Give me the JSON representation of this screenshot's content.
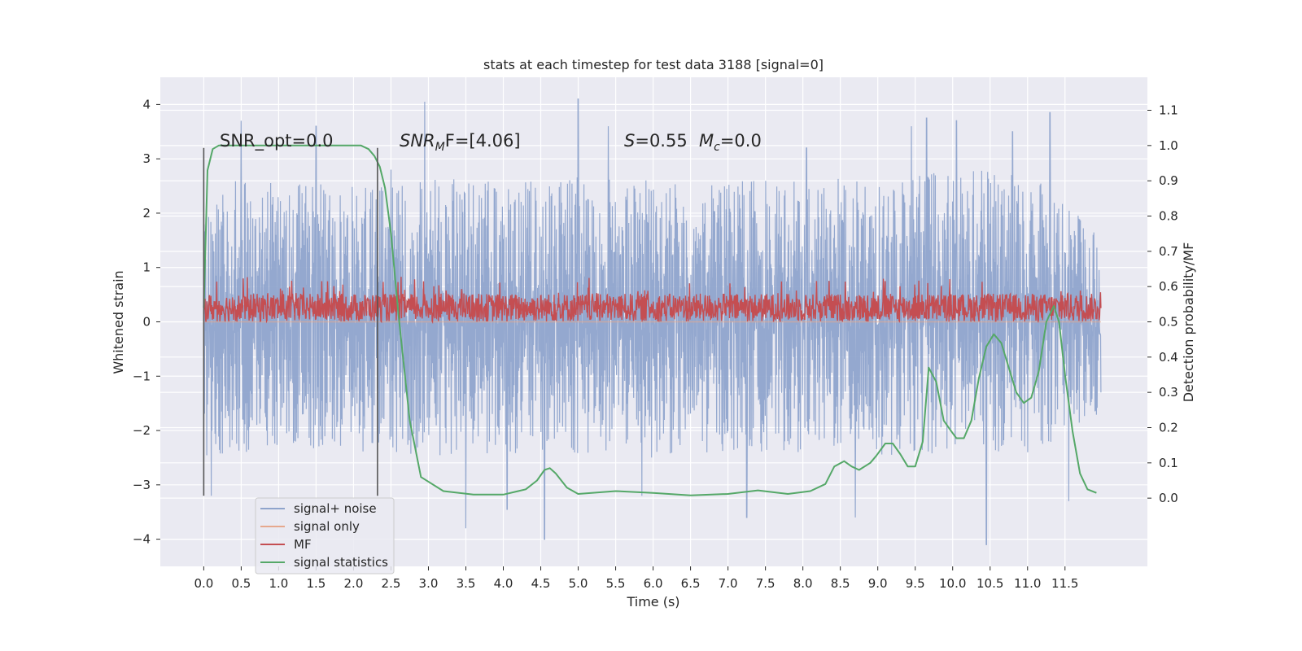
{
  "chart_data": {
    "type": "line",
    "title": "stats at each timestep for test data 3188 [signal=0]",
    "xlabel": "Time (s)",
    "ylabel": "Whitened strain",
    "y2label": "Detection probability/MF",
    "xlim": [
      -0.58,
      12.6
    ],
    "ylim": [
      -4.5,
      4.5
    ],
    "y2lim": [
      -0.1935,
      1.1935
    ],
    "x_ticks": [
      0.0,
      0.5,
      1.0,
      1.5,
      2.0,
      2.5,
      3.0,
      3.5,
      4.0,
      4.5,
      5.0,
      5.5,
      6.0,
      6.5,
      7.0,
      7.5,
      8.0,
      8.5,
      9.0,
      9.5,
      10.0,
      10.5,
      11.0,
      11.5
    ],
    "x_tick_labels": [
      "0.0",
      "0.5",
      "1.0",
      "1.5",
      "2.0",
      "2.5",
      "3.0",
      "3.5",
      "4.0",
      "4.5",
      "5.0",
      "5.5",
      "6.0",
      "6.5",
      "7.0",
      "7.5",
      "8.0",
      "8.5",
      "9.0",
      "9.5",
      "10.0",
      "10.5",
      "11.0",
      "11.5"
    ],
    "y_ticks": [
      -4,
      -3,
      -2,
      -1,
      0,
      1,
      2,
      3,
      4
    ],
    "y_tick_labels": [
      "−4",
      "−3",
      "−2",
      "−1",
      "0",
      "1",
      "2",
      "3",
      "4"
    ],
    "y2_ticks": [
      0.0,
      0.1,
      0.2,
      0.3,
      0.4,
      0.5,
      0.6,
      0.7,
      0.8,
      0.9,
      1.0,
      1.1
    ],
    "y2_tick_labels": [
      "0.0",
      "0.1",
      "0.2",
      "0.3",
      "0.4",
      "0.5",
      "0.6",
      "0.7",
      "0.8",
      "0.9",
      "1.0",
      "1.1"
    ],
    "grid": true,
    "legend_position": "lower-left",
    "annotations": {
      "snr_opt": "SNR_opt=0.0",
      "snr_mf_prefix": "SNR",
      "snr_mf_sub": "M",
      "snr_mf_rest": "F=[4.06]",
      "s_symbol": "S",
      "s_value": "=0.55",
      "mc_symbol": "M",
      "mc_sub": "c",
      "mc_value": "=0.0"
    },
    "vertical_markers": [
      0.0,
      2.32
    ],
    "vertical_marker_range": [
      -3.2,
      3.2
    ],
    "series": [
      {
        "name": "signal+ noise",
        "color": "#8fa4cc",
        "axis": "left",
        "t_range": [
          0.0,
          11.98
        ],
        "envelope": [
          [
            0.0,
            -2.5,
            2.6
          ],
          [
            1.0,
            -2.4,
            2.6
          ],
          [
            2.0,
            -2.4,
            2.5
          ],
          [
            3.0,
            -2.5,
            2.7
          ],
          [
            4.0,
            -2.4,
            2.6
          ],
          [
            5.0,
            -2.5,
            2.7
          ],
          [
            6.0,
            -2.5,
            2.6
          ],
          [
            7.0,
            -2.4,
            2.6
          ],
          [
            8.0,
            -2.4,
            2.6
          ],
          [
            9.0,
            -2.5,
            2.7
          ],
          [
            10.0,
            -2.4,
            2.8
          ],
          [
            11.0,
            -2.4,
            2.8
          ],
          [
            11.98,
            -1.8,
            1.6
          ]
        ],
        "peaks": [
          [
            0.1,
            -3.2
          ],
          [
            0.5,
            3.7
          ],
          [
            1.5,
            3.6
          ],
          [
            2.5,
            2.8
          ],
          [
            2.95,
            4.05
          ],
          [
            3.5,
            -3.8
          ],
          [
            4.05,
            -3.45
          ],
          [
            4.55,
            -4.0
          ],
          [
            5.0,
            4.1
          ],
          [
            5.4,
            3.6
          ],
          [
            5.85,
            -3.2
          ],
          [
            7.25,
            -3.6
          ],
          [
            8.05,
            3.2
          ],
          [
            8.7,
            -3.6
          ],
          [
            9.45,
            3.6
          ],
          [
            9.65,
            3.75
          ],
          [
            10.05,
            3.7
          ],
          [
            10.45,
            -4.1
          ],
          [
            10.8,
            3.5
          ],
          [
            11.3,
            3.85
          ],
          [
            11.55,
            -3.3
          ]
        ]
      },
      {
        "name": "signal only",
        "color": "#e6a88d",
        "axis": "left",
        "t_range": [
          0.0,
          11.98
        ],
        "values_constant": 0.0
      },
      {
        "name": "MF",
        "color": "#c44e52",
        "axis": "right",
        "t_range": [
          0.0,
          11.98
        ],
        "band": [
          0.5,
          0.58
        ]
      },
      {
        "name": "signal statistics",
        "color": "#55a868",
        "axis": "right",
        "x": [
          0.0,
          0.05,
          0.12,
          0.2,
          0.4,
          0.8,
          1.2,
          1.6,
          1.9,
          2.1,
          2.2,
          2.28,
          2.35,
          2.42,
          2.5,
          2.6,
          2.75,
          2.9,
          3.2,
          3.6,
          4.0,
          4.3,
          4.45,
          4.55,
          4.62,
          4.7,
          4.85,
          5.0,
          5.5,
          6.0,
          6.5,
          7.0,
          7.4,
          7.8,
          8.1,
          8.3,
          8.42,
          8.55,
          8.65,
          8.75,
          8.9,
          8.98,
          9.1,
          9.2,
          9.3,
          9.4,
          9.5,
          9.6,
          9.68,
          9.78,
          9.88,
          9.98,
          10.05,
          10.15,
          10.25,
          10.35,
          10.45,
          10.55,
          10.65,
          10.75,
          10.85,
          10.95,
          11.05,
          11.15,
          11.25,
          11.35,
          11.42,
          11.5,
          11.6,
          11.7,
          11.8,
          11.92
        ],
        "values": [
          0.54,
          0.93,
          0.99,
          1.0,
          1.0,
          1.0,
          1.0,
          1.0,
          1.0,
          1.0,
          0.99,
          0.97,
          0.94,
          0.88,
          0.75,
          0.52,
          0.22,
          0.06,
          0.02,
          0.01,
          0.01,
          0.025,
          0.05,
          0.08,
          0.085,
          0.07,
          0.03,
          0.012,
          0.02,
          0.015,
          0.008,
          0.012,
          0.022,
          0.012,
          0.02,
          0.04,
          0.09,
          0.105,
          0.09,
          0.08,
          0.1,
          0.12,
          0.155,
          0.155,
          0.125,
          0.09,
          0.09,
          0.16,
          0.37,
          0.33,
          0.22,
          0.19,
          0.17,
          0.17,
          0.22,
          0.34,
          0.43,
          0.465,
          0.44,
          0.37,
          0.3,
          0.27,
          0.285,
          0.36,
          0.5,
          0.545,
          0.5,
          0.35,
          0.19,
          0.07,
          0.025,
          0.015
        ]
      }
    ]
  }
}
